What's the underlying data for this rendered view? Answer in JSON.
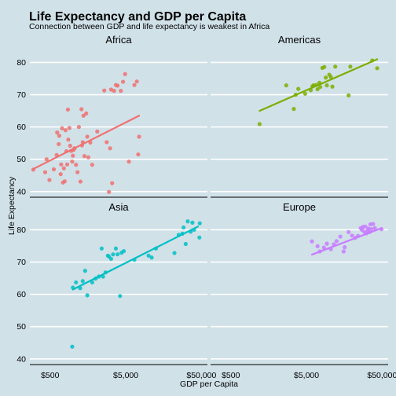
{
  "chart_data": {
    "type": "scatter",
    "title": "Life Expectancy and GDP per Capita",
    "subtitle": "Connection between GDP and life expectancy is weakest in Africa",
    "xlabel": "GDP per Capita",
    "ylabel": "Life Expectancy",
    "x_scale": "log10",
    "xlim": [
      270,
      60000
    ],
    "ylim": [
      38.5,
      84
    ],
    "x_ticks": [
      500,
      5000,
      50000
    ],
    "x_tick_labels": [
      "$500",
      "$5,000",
      "$50,000"
    ],
    "y_ticks": [
      40,
      50,
      60,
      70,
      80
    ],
    "y_tick_labels": [
      "40",
      "50",
      "60",
      "70",
      "80"
    ],
    "grid": "horizontal",
    "panels": [
      {
        "name": "Africa",
        "color": "#f07070",
        "fit": {
          "x": [
            300,
            7500
          ],
          "y": [
            47,
            63.5
          ]
        },
        "points": [
          [
            300,
            46.8
          ],
          [
            430,
            46
          ],
          [
            450,
            50
          ],
          [
            490,
            43.6
          ],
          [
            560,
            46.9
          ],
          [
            610,
            51.3
          ],
          [
            620,
            58.3
          ],
          [
            650,
            54.7
          ],
          [
            660,
            57.3
          ],
          [
            690,
            45.4
          ],
          [
            700,
            48.4
          ],
          [
            720,
            59.6
          ],
          [
            740,
            42.8
          ],
          [
            760,
            47.2
          ],
          [
            780,
            43.2
          ],
          [
            800,
            59.0
          ],
          [
            820,
            52.5
          ],
          [
            840,
            48.4
          ],
          [
            860,
            65.4
          ],
          [
            870,
            56.1
          ],
          [
            900,
            59.7
          ],
          [
            920,
            54.2
          ],
          [
            950,
            52.6
          ],
          [
            980,
            49.3
          ],
          [
            1000,
            51.1
          ],
          [
            1020,
            52.9
          ],
          [
            1050,
            53.4
          ],
          [
            1100,
            48.3
          ],
          [
            1150,
            46.0
          ],
          [
            1200,
            60.0
          ],
          [
            1260,
            43.1
          ],
          [
            1300,
            65.5
          ],
          [
            1320,
            54.3
          ],
          [
            1350,
            55.3
          ],
          [
            1380,
            63.5
          ],
          [
            1420,
            51.0
          ],
          [
            1500,
            64.2
          ],
          [
            1550,
            57.0
          ],
          [
            1600,
            50.6
          ],
          [
            1700,
            55.2
          ],
          [
            1800,
            48.3
          ],
          [
            2100,
            58.6
          ],
          [
            2600,
            71.3
          ],
          [
            2800,
            55.3
          ],
          [
            3000,
            39.9
          ],
          [
            3100,
            53.4
          ],
          [
            3200,
            71.6
          ],
          [
            3300,
            42.6
          ],
          [
            3500,
            71.2
          ],
          [
            3700,
            73.0
          ],
          [
            3900,
            72.8
          ],
          [
            4300,
            71.2
          ],
          [
            4600,
            74.0
          ],
          [
            4900,
            76.4
          ],
          [
            5500,
            49.3
          ],
          [
            6500,
            73.0
          ],
          [
            7000,
            74.1
          ],
          [
            7300,
            51.5
          ],
          [
            7500,
            57.0
          ]
        ]
      },
      {
        "name": "Americas",
        "color": "#7cae00",
        "fit": {
          "x": [
            1200,
            43000
          ],
          "y": [
            65,
            81
          ]
        },
        "points": [
          [
            1200,
            60.9
          ],
          [
            2700,
            72.9
          ],
          [
            3400,
            65.6
          ],
          [
            3600,
            70.0
          ],
          [
            3900,
            71.8
          ],
          [
            4800,
            70.3
          ],
          [
            5700,
            71.4
          ],
          [
            6000,
            72.6
          ],
          [
            6200,
            72.9
          ],
          [
            6700,
            73.0
          ],
          [
            7000,
            71.7
          ],
          [
            7400,
            73.7
          ],
          [
            7600,
            72.4
          ],
          [
            8100,
            78.3
          ],
          [
            8600,
            78.6
          ],
          [
            9000,
            75.3
          ],
          [
            9300,
            72.9
          ],
          [
            10000,
            76.2
          ],
          [
            10500,
            75.5
          ],
          [
            11000,
            72.5
          ],
          [
            12000,
            78.7
          ],
          [
            18000,
            69.8
          ],
          [
            19000,
            78.7
          ],
          [
            37000,
            80.6
          ],
          [
            43000,
            78.2
          ]
        ]
      },
      {
        "name": "Asia",
        "color": "#00bfc4",
        "fit": {
          "x": [
            1000,
            45000
          ],
          "y": [
            61.5,
            81
          ]
        },
        "points": [
          [
            980,
            43.8
          ],
          [
            1000,
            62.1
          ],
          [
            1100,
            63.7
          ],
          [
            1250,
            61.9
          ],
          [
            1350,
            64.1
          ],
          [
            1450,
            67.3
          ],
          [
            1550,
            59.7
          ],
          [
            1800,
            63.7
          ],
          [
            2000,
            64.9
          ],
          [
            2200,
            65.5
          ],
          [
            2400,
            74.2
          ],
          [
            2500,
            65.5
          ],
          [
            2700,
            66.8
          ],
          [
            2900,
            72.0
          ],
          [
            3000,
            71.7
          ],
          [
            3200,
            71.0
          ],
          [
            3400,
            72.4
          ],
          [
            3700,
            74.2
          ],
          [
            3900,
            72.4
          ],
          [
            4200,
            59.5
          ],
          [
            4400,
            72.9
          ],
          [
            4700,
            73.4
          ],
          [
            6500,
            70.7
          ],
          [
            10000,
            72.0
          ],
          [
            11000,
            71.4
          ],
          [
            12500,
            74.2
          ],
          [
            22000,
            72.8
          ],
          [
            25000,
            78.4
          ],
          [
            28000,
            78.8
          ],
          [
            29000,
            80.7
          ],
          [
            31000,
            75.6
          ],
          [
            33000,
            82.6
          ],
          [
            36000,
            79.4
          ],
          [
            38000,
            82.2
          ],
          [
            40000,
            80.0
          ],
          [
            47000,
            77.6
          ],
          [
            47500,
            82.0
          ]
        ]
      },
      {
        "name": "Europe",
        "color": "#c77cff",
        "fit": {
          "x": [
            5900,
            49000
          ],
          "y": [
            72.3,
            80.5
          ]
        },
        "points": [
          [
            5900,
            76.4
          ],
          [
            7000,
            74.9
          ],
          [
            7500,
            73.3
          ],
          [
            8500,
            74.5
          ],
          [
            9300,
            75.7
          ],
          [
            10500,
            74.0
          ],
          [
            11500,
            75.5
          ],
          [
            12500,
            76.5
          ],
          [
            14000,
            77.9
          ],
          [
            15500,
            73.3
          ],
          [
            16000,
            74.6
          ],
          [
            18000,
            79.3
          ],
          [
            20000,
            78.2
          ],
          [
            22000,
            77.5
          ],
          [
            24000,
            78.1
          ],
          [
            26000,
            80.5
          ],
          [
            27000,
            80.0
          ],
          [
            28000,
            80.9
          ],
          [
            29000,
            79.4
          ],
          [
            30000,
            81.0
          ],
          [
            31000,
            78.9
          ],
          [
            32000,
            79.8
          ],
          [
            33000,
            80.4
          ],
          [
            34000,
            79.3
          ],
          [
            35000,
            81.7
          ],
          [
            36000,
            80.2
          ],
          [
            38000,
            81.8
          ],
          [
            40000,
            80.5
          ],
          [
            49000,
            80.2
          ]
        ]
      }
    ]
  }
}
